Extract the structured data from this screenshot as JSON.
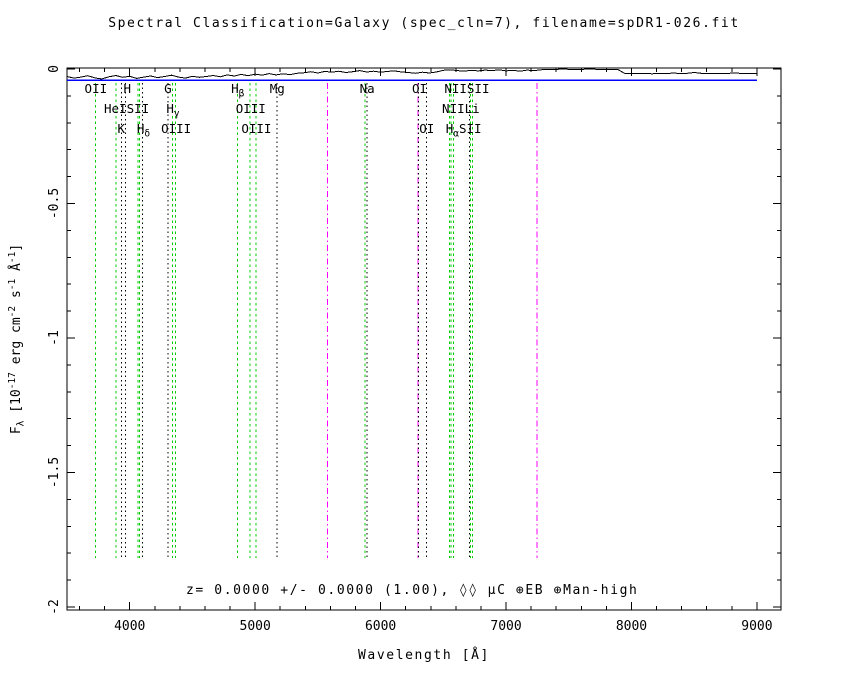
{
  "title": "Spectral Classification=Galaxy (spec_cln=7), filename=spDR1-026.fit",
  "annotation": "z= 0.0000 +/- 0.0000 (1.00), ◊◊  µC ⊕EB ⊕Man-high",
  "redshift": {
    "z": "0.0000",
    "z_error": "0.0000",
    "confidence": "1.00",
    "inspection": "Man-high"
  },
  "axes": {
    "xlabel": "Wavelength [Å]",
    "ylabel_parts": [
      {
        "t": "F"
      },
      {
        "t": "λ",
        "pos": "sub"
      },
      {
        "t": " [10"
      },
      {
        "t": "-17",
        "pos": "sup"
      },
      {
        "t": " erg cm",
        "pos": ""
      },
      {
        "t": "-2",
        "pos": "sup"
      },
      {
        "t": " s"
      },
      {
        "t": "-1",
        "pos": "sup"
      },
      {
        "t": " Å"
      },
      {
        "t": "-1",
        "pos": "sup"
      },
      {
        "t": "]"
      }
    ],
    "x_major_ticks": [
      {
        "value": 4000,
        "label": "4000"
      },
      {
        "value": 5000,
        "label": "5000"
      },
      {
        "value": 6000,
        "label": "6000"
      },
      {
        "value": 7000,
        "label": "7000"
      },
      {
        "value": 8000,
        "label": "8000"
      },
      {
        "value": 9000,
        "label": "9000"
      }
    ],
    "x_minor_step": 200,
    "y_major_ticks": [
      {
        "value": 0,
        "label": "0"
      },
      {
        "value": -0.5,
        "label": "-0.5"
      },
      {
        "value": -1,
        "label": "-1"
      },
      {
        "value": -1.5,
        "label": "-1.5"
      },
      {
        "value": -2,
        "label": "-2"
      }
    ],
    "y_minor_step": 0.1
  },
  "colors": {
    "spectrum": "#000000",
    "model": "#0000ff",
    "emission": "#00cc00",
    "absorption": "#000000",
    "sky": "#ff00ff",
    "background": "#ffffff"
  },
  "chart_data": {
    "type": "line",
    "title": "Spectral Classification=Galaxy (spec_cln=7), filename=spDR1-026.fit",
    "xlabel": "Wavelength [Å]",
    "ylabel": "F_lambda [10^-17 erg cm^-2 s^-1 A^-1]",
    "xlim": [
      3500,
      9192
    ],
    "ylim": [
      0,
      -2
    ],
    "grid": false,
    "series": [
      {
        "name": "observed spectrum",
        "color": "#000000",
        "wavelength_start": 3500,
        "wavelength_end": 9000,
        "flux": [
          -0.028,
          -0.034,
          -0.03,
          -0.025,
          -0.033,
          -0.037,
          -0.029,
          -0.024,
          -0.031,
          -0.027,
          -0.035,
          -0.03,
          -0.026,
          -0.032,
          -0.028,
          -0.023,
          -0.03,
          -0.034,
          -0.027,
          -0.031,
          -0.028,
          -0.024,
          -0.029,
          -0.022,
          -0.026,
          -0.02,
          -0.025,
          -0.019,
          -0.023,
          -0.017,
          -0.022,
          -0.018,
          -0.021,
          -0.016,
          -0.014,
          -0.01,
          -0.015,
          -0.009,
          -0.012,
          -0.008,
          -0.013,
          -0.01,
          -0.006,
          -0.011,
          -0.008,
          -0.012,
          -0.009,
          -0.007,
          -0.011,
          -0.013,
          -0.016,
          -0.012,
          -0.015,
          -0.011,
          -0.005,
          -0.003,
          -0.006,
          -0.008,
          -0.005,
          -0.007,
          -0.004,
          -0.006,
          -0.003,
          -0.007,
          -0.005,
          -0.008,
          -0.004,
          -0.006,
          -0.003,
          -0.001,
          -0.002,
          0.0,
          -0.001,
          -0.002,
          -0.001,
          0.0,
          -0.001,
          -0.002,
          -0.001,
          -0.001,
          -0.016,
          -0.017,
          -0.016,
          -0.017,
          -0.018,
          -0.016,
          -0.017,
          -0.015,
          -0.017,
          -0.016,
          -0.013,
          -0.016,
          -0.017,
          -0.016,
          -0.017,
          -0.016,
          -0.015,
          -0.017,
          -0.016,
          -0.016
        ]
      },
      {
        "name": "model fit",
        "color": "#0000ff",
        "wavelength_start": 3500,
        "wavelength_end": 9000,
        "flux_constant": -0.042
      }
    ],
    "spectral_lines": [
      {
        "name": "OII",
        "wavelength": 3727,
        "type": "emission"
      },
      {
        "name": "HeI",
        "wavelength": 3889,
        "type": "emission"
      },
      {
        "name": "K",
        "wavelength": 3933,
        "type": "absorption"
      },
      {
        "name": "H",
        "wavelength": 3968,
        "type": "absorption"
      },
      {
        "name": "SII",
        "wavelength": 4068,
        "type": "emission"
      },
      {
        "name": "SII",
        "wavelength": 4076,
        "type": "emission"
      },
      {
        "name": "Hdelta",
        "wavelength": 4102,
        "type": "absorption"
      },
      {
        "name": "G",
        "wavelength": 4304,
        "type": "absorption"
      },
      {
        "name": "Hgamma",
        "wavelength": 4340,
        "type": "emission"
      },
      {
        "name": "OIII",
        "wavelength": 4363,
        "type": "emission"
      },
      {
        "name": "Hbeta",
        "wavelength": 4861,
        "type": "emission"
      },
      {
        "name": "OIII",
        "wavelength": 4959,
        "type": "emission"
      },
      {
        "name": "OIII",
        "wavelength": 5007,
        "type": "emission"
      },
      {
        "name": "Mg",
        "wavelength": 5176,
        "type": "absorption"
      },
      {
        "name": "sky",
        "wavelength": 5577,
        "type": "sky"
      },
      {
        "name": "HeI",
        "wavelength": 5876,
        "type": "emission"
      },
      {
        "name": "Na",
        "wavelength": 5893,
        "type": "absorption"
      },
      {
        "name": "sky",
        "wavelength": 6300,
        "type": "sky"
      },
      {
        "name": "OI",
        "wavelength": 6302,
        "type": "absorption"
      },
      {
        "name": "OI",
        "wavelength": 6365,
        "type": "absorption"
      },
      {
        "name": "NII",
        "wavelength": 6548,
        "type": "emission"
      },
      {
        "name": "Halpha",
        "wavelength": 6563,
        "type": "emission"
      },
      {
        "name": "NII",
        "wavelength": 6583,
        "type": "emission"
      },
      {
        "name": "Li",
        "wavelength": 6708,
        "type": "absorption"
      },
      {
        "name": "SII",
        "wavelength": 6716,
        "type": "emission"
      },
      {
        "name": "SII",
        "wavelength": 6731,
        "type": "emission"
      },
      {
        "name": "sky",
        "wavelength": 7245,
        "type": "sky"
      }
    ],
    "line_labels": [
      {
        "row": 1,
        "wavelength": 3730,
        "text": "OII"
      },
      {
        "row": 1,
        "wavelength": 3980,
        "text": "H"
      },
      {
        "row": 1,
        "wavelength": 4304,
        "text": "G"
      },
      {
        "row": 1,
        "wavelength": 4861,
        "text": "H",
        "sub": "β"
      },
      {
        "row": 1,
        "wavelength": 5176,
        "text": "Mg"
      },
      {
        "row": 1,
        "wavelength": 5893,
        "text": "Na"
      },
      {
        "row": 1,
        "wavelength": 6310,
        "text": "OI"
      },
      {
        "row": 1,
        "wavelength": 6688,
        "text": "NIISII"
      },
      {
        "row": 2,
        "wavelength": 3975,
        "text": "HeISII"
      },
      {
        "row": 2,
        "wavelength": 4345,
        "text": "H",
        "sub": "γ"
      },
      {
        "row": 2,
        "wavelength": 4965,
        "text": "OIII"
      },
      {
        "row": 2,
        "wavelength": 6640,
        "text": "NIILi"
      },
      {
        "row": 3,
        "wavelength": 3933,
        "text": "K"
      },
      {
        "row": 3,
        "wavelength": 4110,
        "text": "H",
        "sub": "δ"
      },
      {
        "row": 3,
        "wavelength": 4370,
        "text": "OIII"
      },
      {
        "row": 3,
        "wavelength": 5010,
        "text": "OIII"
      },
      {
        "row": 3,
        "wavelength": 6368,
        "text": "OI"
      },
      {
        "row": 3,
        "wavelength": 6662,
        "text": "H",
        "sub": "α",
        "tail": "SII"
      }
    ],
    "line_styles": {
      "emission": {
        "color": "#00cc00",
        "dash": "2.5 3"
      },
      "absorption": {
        "color": "#000000",
        "dash": "1.5 3"
      },
      "sky": {
        "color": "#ff00ff",
        "dash": "6 3 1.5 3"
      }
    }
  }
}
